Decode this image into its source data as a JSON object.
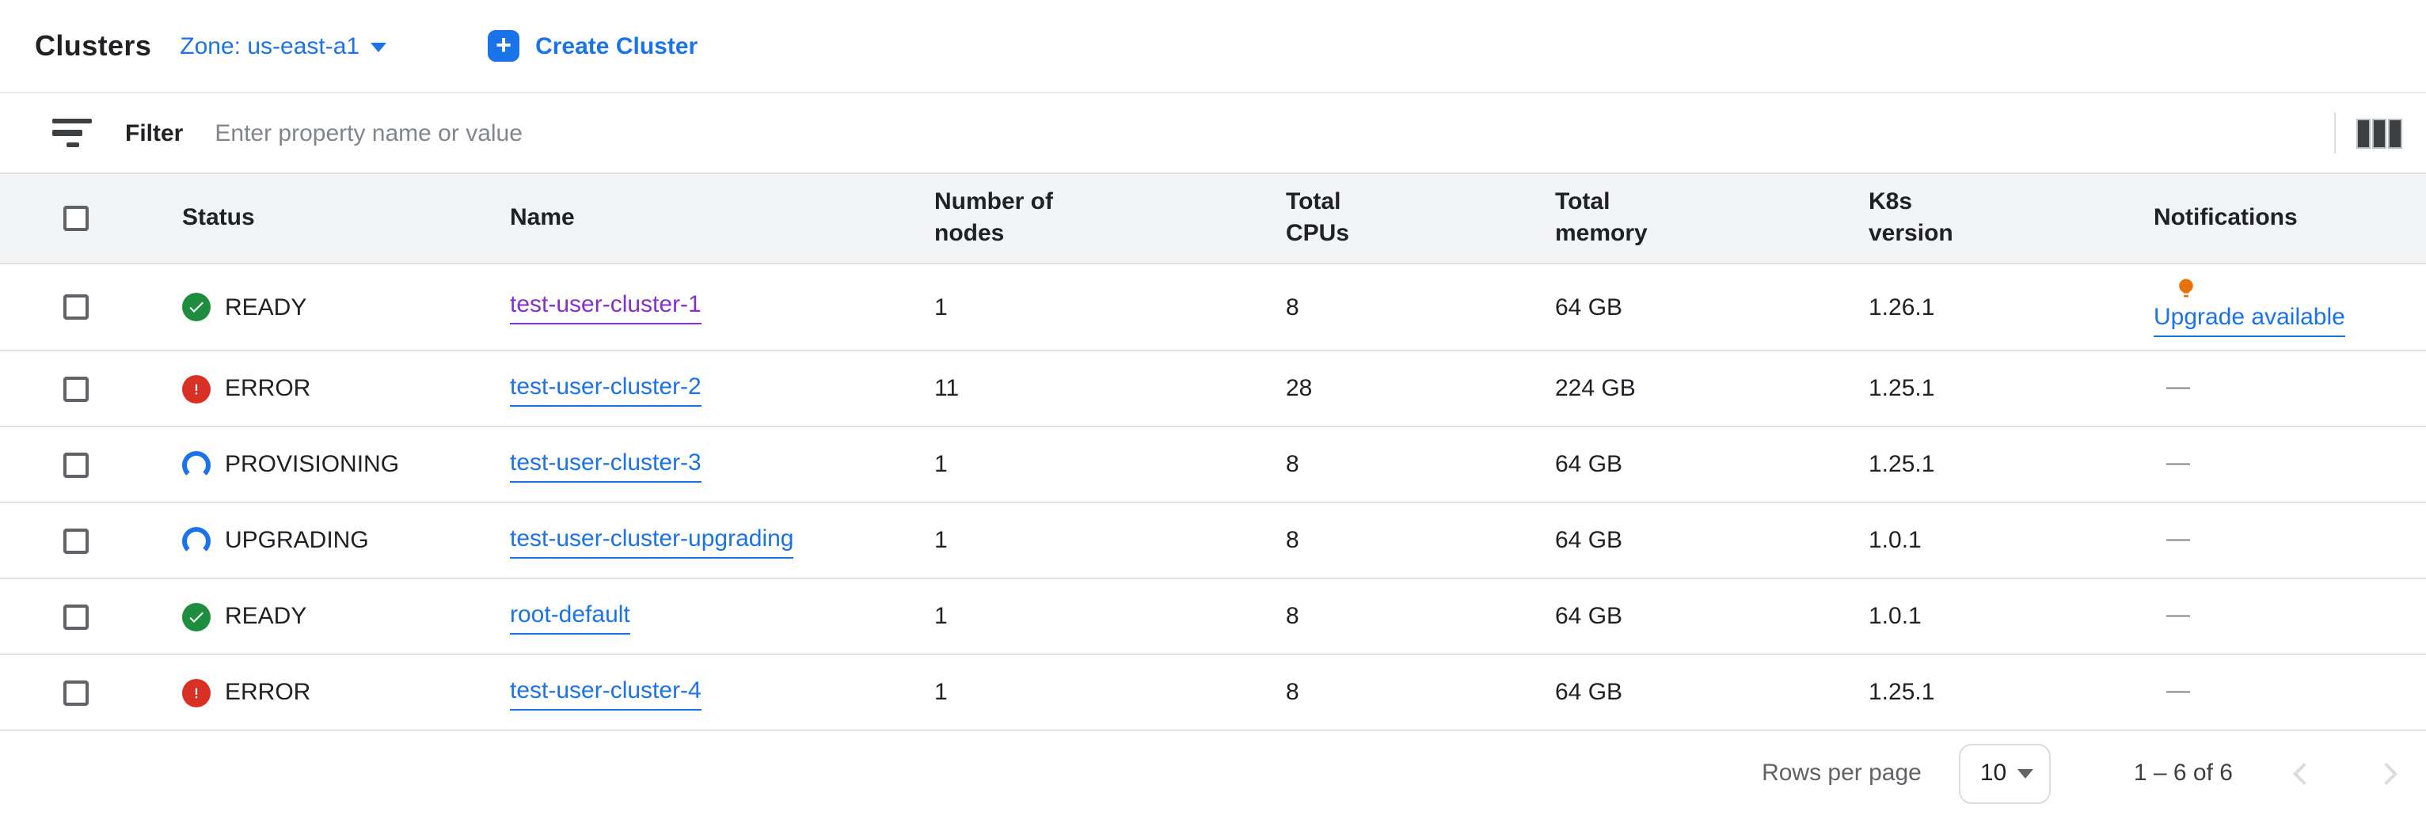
{
  "colors": {
    "accent": "#1a73e8",
    "visited_link": "#8430ce",
    "ready_green": "#1e8e3e",
    "error_red": "#d93025",
    "bulb_orange": "#e8710a"
  },
  "header": {
    "title": "Clusters",
    "zone_selector": "Zone: us-east-a1",
    "create_button": "Create Cluster",
    "plus_glyph": "+"
  },
  "filter_bar": {
    "label": "Filter",
    "input_placeholder": "Enter property name or value",
    "icons": {
      "left": "filter-funnel-icon",
      "right": "column-display-options-icon"
    }
  },
  "table": {
    "columns": [
      "Status",
      "Name",
      "Number of nodes",
      "Total CPUs",
      "Total memory",
      "K8s version",
      "Notifications"
    ],
    "rows": [
      {
        "status": "READY",
        "status_icon": "check-circle",
        "name": "test-user-cluster-1",
        "visited": true,
        "nodes": "1",
        "cpus": "8",
        "memory": "64 GB",
        "version": "1.26.1",
        "notification": "Upgrade available",
        "notification_icon": "lightbulb"
      },
      {
        "status": "ERROR",
        "status_icon": "error-circle",
        "name": "test-user-cluster-2",
        "visited": false,
        "nodes": "11",
        "cpus": "28",
        "memory": "224 GB",
        "version": "1.25.1",
        "notification": "—",
        "notification_icon": null
      },
      {
        "status": "PROVISIONING",
        "status_icon": "progress-arc",
        "name": "test-user-cluster-3",
        "visited": false,
        "nodes": "1",
        "cpus": "8",
        "memory": "64 GB",
        "version": "1.25.1",
        "notification": "—",
        "notification_icon": null
      },
      {
        "status": "UPGRADING",
        "status_icon": "progress-arc",
        "name": "test-user-cluster-upgrading",
        "visited": false,
        "nodes": "1",
        "cpus": "8",
        "memory": "64 GB",
        "version": "1.0.1",
        "notification": "—",
        "notification_icon": null
      },
      {
        "status": "READY",
        "status_icon": "check-circle",
        "name": "root-default",
        "visited": false,
        "nodes": "1",
        "cpus": "8",
        "memory": "64 GB",
        "version": "1.0.1",
        "notification": "—",
        "notification_icon": null
      },
      {
        "status": "ERROR",
        "status_icon": "error-circle",
        "name": "test-user-cluster-4",
        "visited": false,
        "nodes": "1",
        "cpus": "8",
        "memory": "64 GB",
        "version": "1.25.1",
        "notification": "—",
        "notification_icon": null
      }
    ]
  },
  "pagination": {
    "rows_per_page_label": "Rows per page",
    "rows_per_page_value": "10",
    "range": "1 – 6 of 6"
  }
}
